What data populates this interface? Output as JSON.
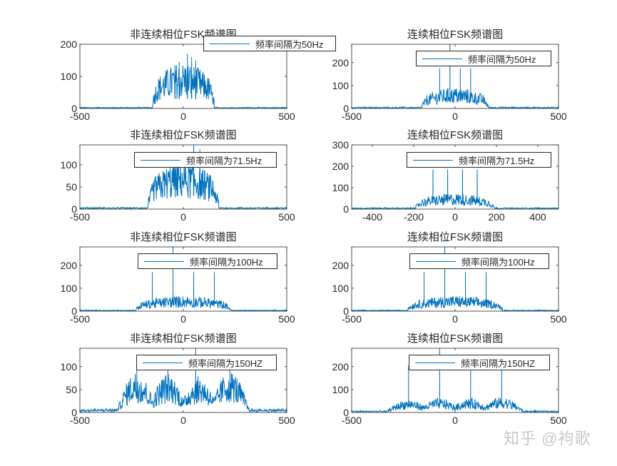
{
  "figure": {
    "watermark": "知乎 @袧歌",
    "line_color": "#0072BD",
    "axis_color": "#262626"
  },
  "chart_data": [
    {
      "type": "line",
      "title": "非连续相位FSK频谱图",
      "legend": "频率间隔为50Hz",
      "xlim": [
        -500,
        500
      ],
      "ylim": [
        0,
        200
      ],
      "xticks": [
        -500,
        0,
        500
      ],
      "yticks": [
        0,
        100,
        200
      ],
      "xlabel": "",
      "ylabel": "",
      "envelope": {
        "center": 0,
        "halfwidth": 150,
        "peak": 120,
        "noise": 3
      },
      "spikes": [
        {
          "x": 20,
          "y": 170
        },
        {
          "x": 40,
          "y": 160
        },
        {
          "x": -20,
          "y": 145
        },
        {
          "x": 60,
          "y": 150
        },
        {
          "x": -40,
          "y": 130
        }
      ]
    },
    {
      "type": "line",
      "title": "连续相位FSK频谱图",
      "legend": "频率间隔为50Hz",
      "xlim": [
        -500,
        500
      ],
      "ylim": [
        0,
        280
      ],
      "xticks": [
        -500,
        0,
        500
      ],
      "yticks": [
        0,
        100,
        200
      ],
      "xlabel": "",
      "ylabel": "",
      "envelope": {
        "center": 0,
        "halfwidth": 160,
        "peak": 75,
        "noise": 5
      },
      "spikes": [
        {
          "x": -75,
          "y": 175
        },
        {
          "x": -25,
          "y": 280
        },
        {
          "x": 25,
          "y": 175
        },
        {
          "x": 75,
          "y": 175
        }
      ]
    },
    {
      "type": "line",
      "title": "非连续相位FSK频谱图",
      "legend": "频率间隔为71.5Hz",
      "xlim": [
        -500,
        500
      ],
      "ylim": [
        0,
        145
      ],
      "xticks": [
        -500,
        0,
        500
      ],
      "yticks": [
        0,
        50,
        100
      ],
      "xlabel": "",
      "ylabel": "",
      "envelope": {
        "center": 0,
        "halfwidth": 170,
        "peak": 90,
        "noise": 3
      },
      "spikes": [
        {
          "x": 50,
          "y": 145
        },
        {
          "x": 80,
          "y": 135
        },
        {
          "x": -30,
          "y": 120
        }
      ]
    },
    {
      "type": "line",
      "title": "连续相位FSK频谱图",
      "legend": "频率间隔为71.5Hz",
      "xlim": [
        -500,
        500
      ],
      "ylim": [
        0,
        300
      ],
      "xticks": [
        -400,
        -200,
        0,
        200,
        400
      ],
      "yticks": [
        0,
        100,
        200,
        300
      ],
      "xlabel": "",
      "ylabel": "",
      "envelope": {
        "center": 0,
        "halfwidth": 190,
        "peak": 60,
        "noise": 5
      },
      "spikes": [
        {
          "x": -107,
          "y": 185
        },
        {
          "x": -36,
          "y": 185
        },
        {
          "x": 36,
          "y": 185
        },
        {
          "x": 107,
          "y": 185
        }
      ]
    },
    {
      "type": "line",
      "title": "非连续相位FSK频谱图",
      "legend": "频率间隔为100Hz",
      "xlim": [
        -500,
        500
      ],
      "ylim": [
        0,
        280
      ],
      "xticks": [
        -500,
        0,
        500
      ],
      "yticks": [
        0,
        100,
        200
      ],
      "xlabel": "",
      "ylabel": "",
      "envelope": {
        "center": 0,
        "halfwidth": 230,
        "peak": 55,
        "noise": 4
      },
      "spikes": [
        {
          "x": -150,
          "y": 170
        },
        {
          "x": -50,
          "y": 280
        },
        {
          "x": 50,
          "y": 170
        },
        {
          "x": 150,
          "y": 170
        }
      ]
    },
    {
      "type": "line",
      "title": "连续相位FSK频谱图",
      "legend": "频率间隔为100Hz",
      "xlim": [
        -500,
        500
      ],
      "ylim": [
        0,
        280
      ],
      "xticks": [
        -500,
        0,
        500
      ],
      "yticks": [
        0,
        100,
        200
      ],
      "xlabel": "",
      "ylabel": "",
      "envelope": {
        "center": 0,
        "halfwidth": 230,
        "peak": 55,
        "noise": 4
      },
      "spikes": [
        {
          "x": -150,
          "y": 170
        },
        {
          "x": -50,
          "y": 280
        },
        {
          "x": 50,
          "y": 170
        },
        {
          "x": 150,
          "y": 170
        }
      ]
    },
    {
      "type": "line",
      "title": "非连续相位FSK频谱图",
      "legend": "频率间隔为150HZ",
      "xlim": [
        -500,
        500
      ],
      "ylim": [
        0,
        140
      ],
      "xticks": [
        -500,
        0,
        500
      ],
      "yticks": [
        0,
        50,
        100
      ],
      "xlabel": "",
      "ylabel": "",
      "lobes": [
        {
          "center": -225,
          "peak": 75
        },
        {
          "center": -75,
          "peak": 70
        },
        {
          "center": 75,
          "peak": 65
        },
        {
          "center": 225,
          "peak": 75
        }
      ],
      "lobe_halfwidth": 70,
      "noise": 6,
      "spikes": [
        {
          "x": 60,
          "y": 140
        },
        {
          "x": -225,
          "y": 100
        },
        {
          "x": -75,
          "y": 95
        },
        {
          "x": 225,
          "y": 95
        }
      ]
    },
    {
      "type": "line",
      "title": "连续相位FSK频谱图",
      "legend": "频率间隔为150HZ",
      "xlim": [
        -500,
        500
      ],
      "ylim": [
        0,
        280
      ],
      "xticks": [
        -500,
        0,
        500
      ],
      "yticks": [
        0,
        100,
        200
      ],
      "xlabel": "",
      "ylabel": "",
      "lobes": [
        {
          "center": -225,
          "peak": 45
        },
        {
          "center": -75,
          "peak": 50
        },
        {
          "center": 75,
          "peak": 50
        },
        {
          "center": 225,
          "peak": 55
        }
      ],
      "lobe_halfwidth": 80,
      "noise": 6,
      "spikes": [
        {
          "x": -225,
          "y": 205
        },
        {
          "x": -75,
          "y": 280
        },
        {
          "x": 75,
          "y": 200
        },
        {
          "x": 225,
          "y": 200
        }
      ]
    }
  ]
}
